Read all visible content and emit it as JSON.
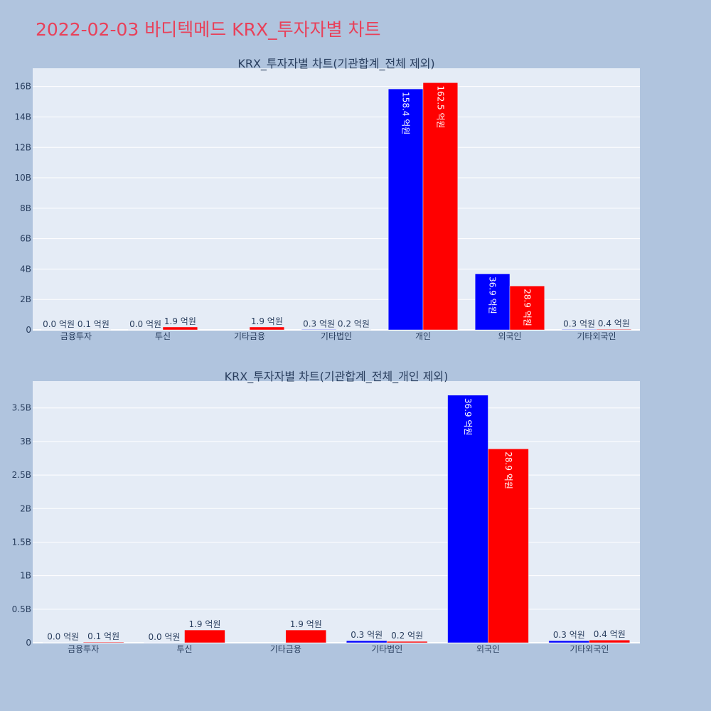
{
  "page": {
    "title": "2022-02-03 바디텍메드 KRX_투자자별 차트"
  },
  "colors": {
    "series_a": "#0000ff",
    "series_b": "#ff0000",
    "title": "#e8415a",
    "background": "#b0c4de",
    "plot_background": "#e5ecf6"
  },
  "chart_data": [
    {
      "type": "bar",
      "title": "KRX_투자자별 차트(기관합계_전체 제외)",
      "categories": [
        "금융투자",
        "투신",
        "기타금융",
        "기타법인",
        "개인",
        "외국인",
        "기타외국인"
      ],
      "ylim": [
        0,
        17200000000
      ],
      "yticks": [
        0,
        2000000000,
        4000000000,
        6000000000,
        8000000000,
        10000000000,
        12000000000,
        14000000000,
        16000000000
      ],
      "ytick_labels": [
        "0",
        "2B",
        "4B",
        "6B",
        "8B",
        "10B",
        "12B",
        "14B",
        "16B"
      ],
      "grid": true,
      "series": [
        {
          "values": [
            3000000,
            2000000,
            null,
            30000000,
            15840000000,
            3690000000,
            30000000
          ],
          "labels": [
            "0.0 억원",
            "0.0 억원",
            "",
            "0.3 억원",
            "158.4 억원",
            "36.9 억원",
            "0.3 억원"
          ]
        },
        {
          "values": [
            10000000,
            190000000,
            190000000,
            20000000,
            16250000000,
            2890000000,
            40000000
          ],
          "labels": [
            "0.1 억원",
            "1.9 억원",
            "1.9 억원",
            "0.2 억원",
            "162.5 억원",
            "28.9 억원",
            "0.4 억원"
          ]
        }
      ]
    },
    {
      "type": "bar",
      "title": "KRX_투자자별 차트(기관합계_전체_개인 제외)",
      "categories": [
        "금융투자",
        "투신",
        "기타금융",
        "기타법인",
        "외국인",
        "기타외국인"
      ],
      "ylim": [
        0,
        3900000000
      ],
      "yticks": [
        0,
        500000000,
        1000000000,
        1500000000,
        2000000000,
        2500000000,
        3000000000,
        3500000000
      ],
      "ytick_labels": [
        "0",
        "0.5B",
        "1B",
        "1.5B",
        "2B",
        "2.5B",
        "3B",
        "3.5B"
      ],
      "grid": true,
      "series": [
        {
          "values": [
            3000000,
            2000000,
            null,
            30000000,
            3690000000,
            30000000
          ],
          "labels": [
            "0.0 억원",
            "0.0 억원",
            "",
            "0.3 억원",
            "36.9 억원",
            "0.3 억원"
          ]
        },
        {
          "values": [
            10000000,
            190000000,
            190000000,
            20000000,
            2890000000,
            40000000
          ],
          "labels": [
            "0.1 억원",
            "1.9 억원",
            "1.9 억원",
            "0.2 억원",
            "28.9 억원",
            "0.4 억원"
          ]
        }
      ]
    }
  ]
}
